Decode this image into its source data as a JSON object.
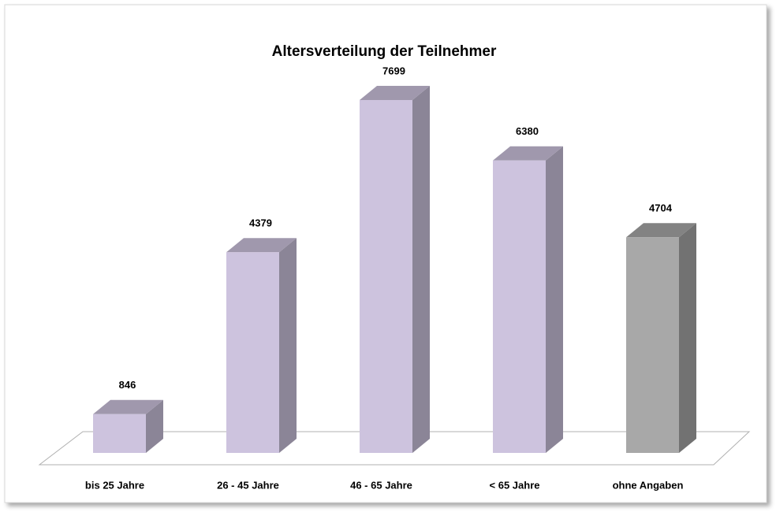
{
  "chart_data": {
    "type": "bar3d",
    "title": "Altersverteilung der Teilnehmer",
    "categories": [
      "bis 25 Jahre",
      "26 - 45 Jahre",
      "46 - 65 Jahre",
      "< 65 Jahre",
      "ohne Angaben"
    ],
    "values": [
      846,
      4379,
      7699,
      6380,
      4704
    ],
    "colors": [
      "#cdc3de",
      "#cdc3de",
      "#cdc3de",
      "#cdc3de",
      "#a8a8a8"
    ]
  }
}
